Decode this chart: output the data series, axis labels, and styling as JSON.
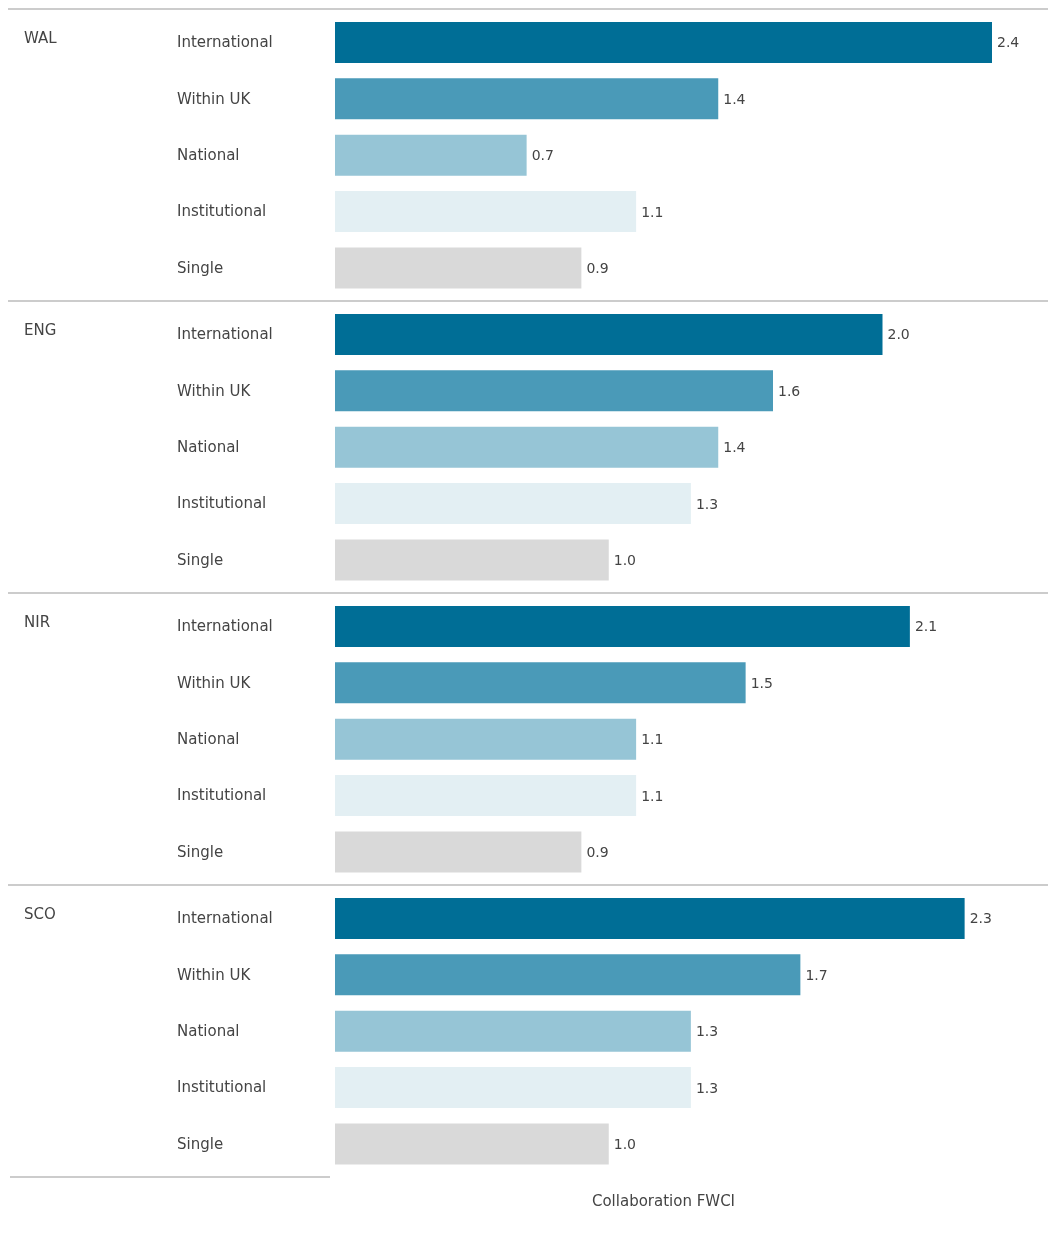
{
  "chart_data": [
    {
      "type": "bar",
      "orientation": "horizontal",
      "ylabel": "WAL",
      "categories": [
        "International",
        "Within UK",
        "National",
        "Institutional",
        "Single"
      ],
      "values": [
        2.4,
        1.4,
        0.7,
        1.1,
        0.9
      ],
      "value_labels": [
        "2.4",
        "1.4",
        "0.7",
        "1.1",
        "0.9"
      ],
      "colors": [
        "#006e96",
        "#4a9ab8",
        "#96c5d6",
        "#e3eff3",
        "#d9d9d9"
      ],
      "tick_labels": "y"
    },
    {
      "type": "bar",
      "orientation": "horizontal",
      "ylabel": "ENG",
      "categories": [
        "International",
        "Within UK",
        "National",
        "Institutional",
        "Single"
      ],
      "values": [
        2.0,
        1.6,
        1.4,
        1.3,
        1.0
      ],
      "value_labels": [
        "2.0",
        "1.6",
        "1.4",
        "1.3",
        "1.0"
      ],
      "colors": [
        "#006e96",
        "#4a9ab8",
        "#96c5d6",
        "#e3eff3",
        "#d9d9d9"
      ],
      "tick_labels": "y"
    },
    {
      "type": "bar",
      "orientation": "horizontal",
      "ylabel": "NIR",
      "categories": [
        "International",
        "Within UK",
        "National",
        "Institutional",
        "Single"
      ],
      "values": [
        2.1,
        1.5,
        1.1,
        1.1,
        0.9
      ],
      "value_labels": [
        "2.1",
        "1.5",
        "1.1",
        "1.1",
        "0.9"
      ],
      "colors": [
        "#006e96",
        "#4a9ab8",
        "#96c5d6",
        "#e3eff3",
        "#d9d9d9"
      ],
      "tick_labels": "y"
    },
    {
      "type": "bar",
      "orientation": "horizontal",
      "ylabel": "SCO",
      "categories": [
        "International",
        "Within UK",
        "National",
        "Institutional",
        "Single"
      ],
      "values": [
        2.3,
        1.7,
        1.3,
        1.3,
        1.0
      ],
      "value_labels": [
        "2.3",
        "1.7",
        "1.3",
        "1.3",
        "1.0"
      ],
      "colors": [
        "#006e96",
        "#4a9ab8",
        "#96c5d6",
        "#e3eff3",
        "#d9d9d9"
      ],
      "tick_labels": "y",
      "xlabel": "Collaboration FWCI"
    }
  ]
}
